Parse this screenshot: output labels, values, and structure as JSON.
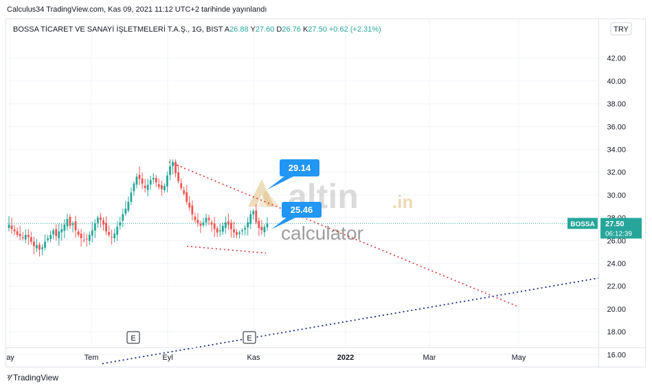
{
  "header": {
    "published_line": "Calculus34 TradingView.com, Kas 09, 2021 11:12 UTC+2 tarihinde yayınlandı"
  },
  "legend": {
    "symbol_title": "BOSSA TİCARET VE SANAYİ İŞLETMELERİ T.A.Ş., 1G, BIST",
    "o_label": "A",
    "o_value": "26.88",
    "h_label": "Y",
    "h_value": "27.60",
    "l_label": "D",
    "l_value": "26.76",
    "c_label": "K",
    "c_value": "27.50",
    "change": "+0.62 (+2.31%)"
  },
  "currency_button": "TRY",
  "price_tag": {
    "symbol": "BOSSA",
    "price": "27.50",
    "countdown": "06:12:39"
  },
  "callouts": [
    {
      "label": "29.14",
      "price": 29.14
    },
    {
      "label": "25.46",
      "price": 25.46
    }
  ],
  "earnings_marker": "E",
  "watermark": {
    "brand": "altin",
    "tld": ".in",
    "sub": "calculator"
  },
  "footer": {
    "brand": "TradingView"
  },
  "colors": {
    "up": "#26a69a",
    "down": "#ef5350",
    "callout": "#2196f3",
    "price_tag": "#26a69a",
    "resistance": "#d32f2f",
    "support": "#1a237e",
    "watermark_gold": "#d9b46a",
    "watermark_gray": "#8c8c8c"
  },
  "chart_data": {
    "type": "candlestick",
    "y_axis_ticks": [
      "42.00",
      "40.00",
      "38.00",
      "36.00",
      "34.00",
      "32.00",
      "30.00",
      "28.00",
      "26.00",
      "24.00",
      "22.00",
      "20.00",
      "18.00",
      "16.00"
    ],
    "ylim": [
      15,
      43
    ],
    "x_axis_labels": [
      "ay",
      "Tem",
      "Eyl",
      "Kas",
      "2022",
      "Mar",
      "May"
    ],
    "last_price": 27.5,
    "series_close": [
      27.4,
      27.0,
      26.8,
      26.5,
      26.4,
      26.2,
      26.5,
      26.3,
      25.9,
      25.5,
      25.6,
      25.2,
      25.4,
      25.9,
      26.2,
      26.5,
      26.9,
      26.4,
      26.8,
      27.0,
      27.4,
      27.9,
      27.3,
      27.5,
      26.9,
      26.5,
      26.2,
      26.0,
      26.1,
      26.5,
      26.9,
      27.5,
      28.0,
      27.8,
      27.4,
      26.8,
      26.5,
      26.3,
      26.6,
      27.2,
      27.6,
      28.3,
      28.8,
      29.4,
      30.2,
      31.0,
      31.6,
      31.4,
      31.0,
      30.6,
      30.9,
      31.3,
      31.5,
      31.1,
      30.7,
      30.5,
      30.8,
      31.7,
      32.5,
      32.9,
      31.9,
      31.2,
      30.6,
      30.1,
      29.4,
      28.9,
      28.3,
      27.8,
      27.5,
      27.3,
      27.6,
      28.0,
      27.8,
      27.4,
      27.0,
      26.7,
      26.9,
      27.3,
      27.6,
      27.4,
      27.0,
      26.7,
      26.5,
      26.7,
      26.9,
      27.1,
      27.6,
      28.3,
      28.6,
      27.6,
      27.1,
      26.9,
      27.2,
      27.5
    ],
    "annotations": [
      {
        "type": "line",
        "label": "resistance",
        "from": {
          "x": "Eyl",
          "y": 32.9
        },
        "to": {
          "x": "Mar–May",
          "y": 20.2
        }
      },
      {
        "type": "line",
        "label": "support",
        "from": {
          "x": "Kas",
          "y": 24.9
        },
        "to": {
          "x": "Kas",
          "y": 25.5
        }
      },
      {
        "type": "line",
        "label": "long-term support",
        "from": {
          "x": "Tem",
          "y": 15.2
        },
        "to": {
          "x": "May+",
          "y": 22.7
        }
      },
      {
        "type": "callout",
        "label": "29.14",
        "x": "Kas",
        "y": 29.14
      },
      {
        "type": "callout",
        "label": "25.46",
        "x": "Kas",
        "y": 25.46
      }
    ]
  }
}
